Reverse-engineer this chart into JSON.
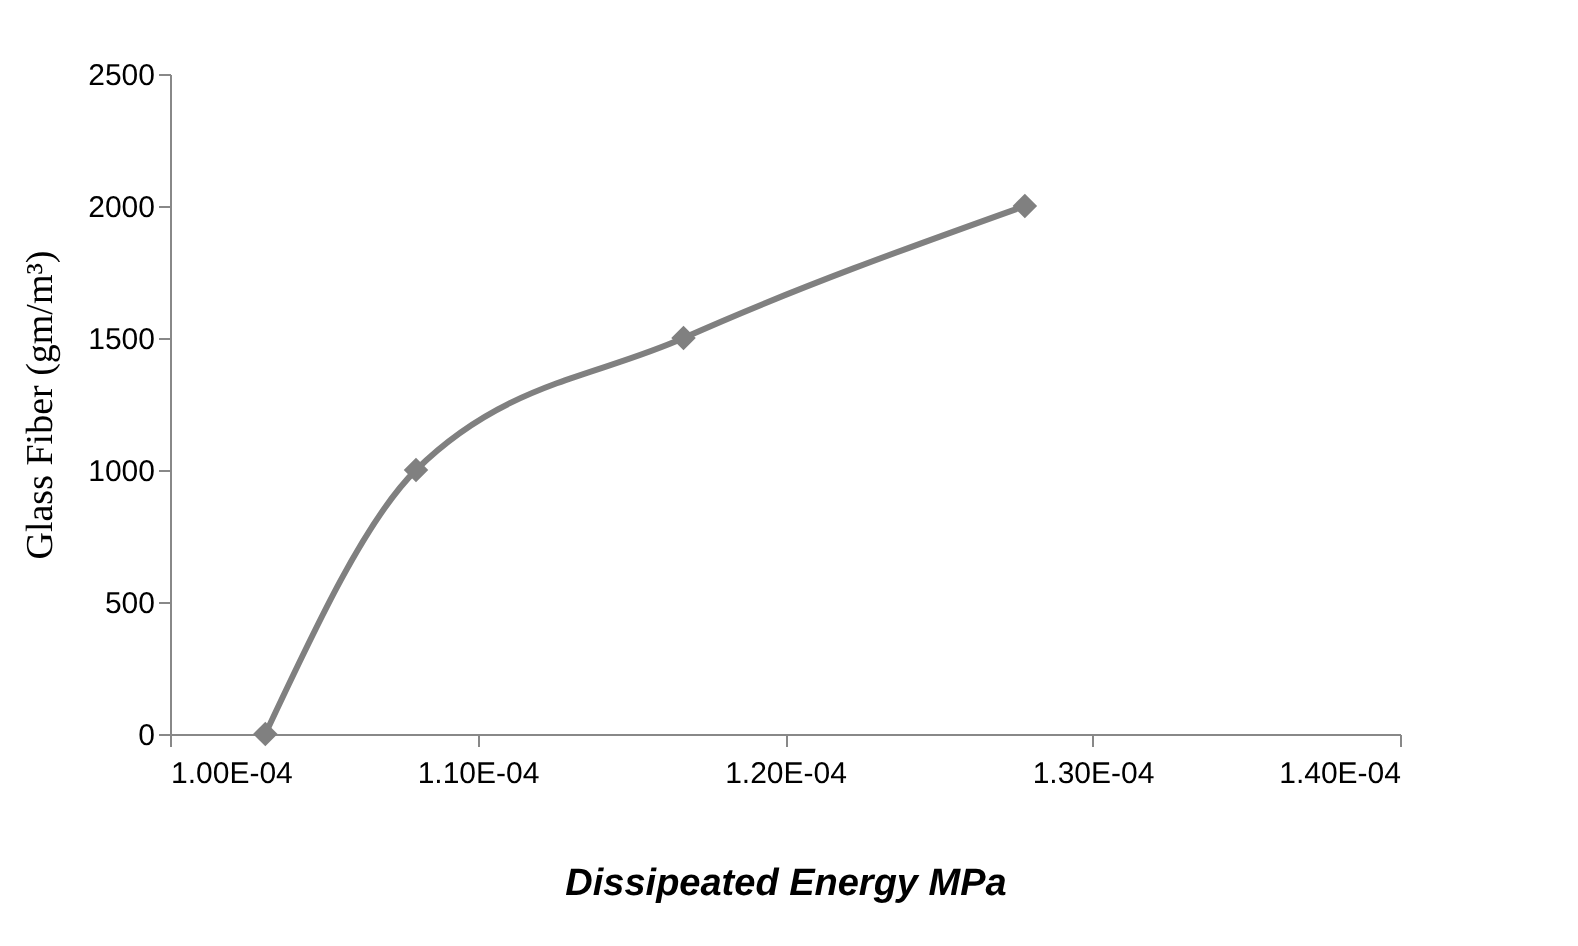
{
  "chart_data": {
    "type": "line",
    "xlabel": "Dissipeated  Energy MPa",
    "ylabel": "Glass Fiber (gm/m³)",
    "x": [
      0.0001031,
      0.000108,
      0.0001167,
      0.0001278
    ],
    "series": [
      {
        "color": "#808080",
        "values": [
          0,
          1000,
          1500,
          2000
        ]
      }
    ],
    "xlim": [
      0.0001,
      0.00014
    ],
    "xticks": [
      {
        "value": 0.0001,
        "label": "1.00E-04"
      },
      {
        "value": 0.00011,
        "label": "1.10E-04"
      },
      {
        "value": 0.00012,
        "label": "1.20E-04"
      },
      {
        "value": 0.00013,
        "label": "1.30E-04"
      },
      {
        "value": 0.00014,
        "label": "1.40E-04"
      }
    ],
    "ylim": [
      0,
      2500
    ],
    "yticks": [
      0,
      500,
      1000,
      1500,
      2000,
      2500
    ],
    "marker": "diamond",
    "line_style": "solid",
    "grid": false
  }
}
